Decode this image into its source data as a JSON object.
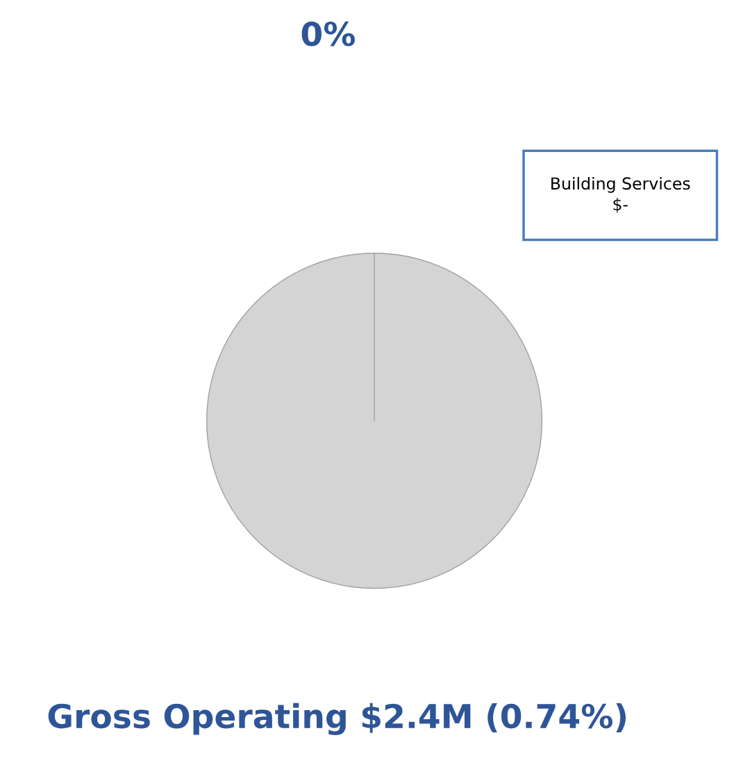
{
  "chart_data": {
    "type": "pie",
    "title": "0%",
    "categories": [
      null,
      "Building Services"
    ],
    "values": [
      100,
      0
    ],
    "value_labels": [
      null,
      "$-"
    ],
    "colors": [
      "#d4d4d4",
      "#4a7ebb"
    ],
    "annotations": [
      "Gross Operating $2.4M (0.74%)"
    ]
  }
}
